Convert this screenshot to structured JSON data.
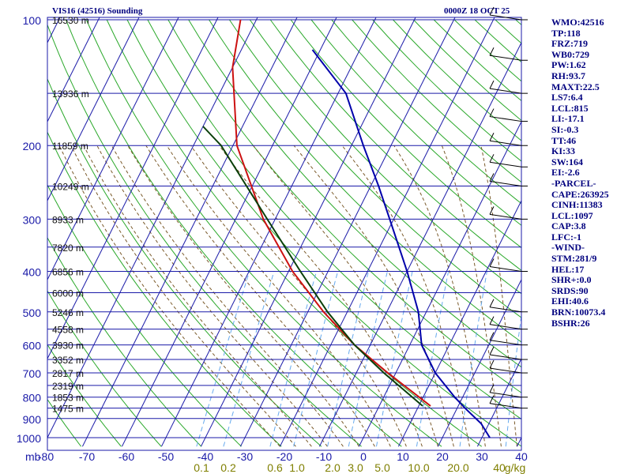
{
  "header": {
    "title": "VIS16 (42516) Sounding",
    "valid_time": "0000Z 18 OCT 25"
  },
  "indices": [
    "WMO:42516",
    "TP:118",
    "FRZ:719",
    "WB0:729",
    "PW:1.62",
    "RH:93.7",
    "MAXT:22.5",
    "LS7:6.4",
    "LCL:815",
    "LI:-17.1",
    "SI:-0.3",
    "TT:46",
    "KI:33",
    "SW:164",
    "EI:-2.6",
    "-PARCEL-",
    "CAPE:263925",
    "CINH:11383",
    "LCL:1097",
    "CAP:3.8",
    "LFC:-1",
    "-WIND-",
    "STM:281/9",
    "HEL:17",
    "SHR+:0.0",
    "SRDS:90",
    "EHI:40.6",
    "BRN:10073.4",
    "BSHR:26"
  ],
  "colors": {
    "grid": "#1a1aa8",
    "dry_adiabat": "#2aa82a",
    "moist_adiabat": "#7a5a2a",
    "mixing_ratio": "#66aaee",
    "temperature": "#0000aa",
    "dewpoint": "#cc1111",
    "parcel": "#0a400a",
    "pressure_label": "#1a1aa8",
    "mixing_label": "#7f7f00"
  },
  "chart_data": {
    "type": "line",
    "title": "VIS16 (42516) Sounding",
    "subtitle": "0000Z 18 OCT 25",
    "x_axis_unit": "mb",
    "x_ticks": [
      -80,
      -70,
      -60,
      -50,
      -40,
      -30,
      -20,
      -10,
      0,
      10,
      20,
      30,
      40
    ],
    "x_tick_labels": [
      "-80",
      "-70",
      "-60",
      "-50",
      "-40",
      "-30",
      "-20",
      "-10",
      "0",
      "10",
      "20",
      "30",
      "40"
    ],
    "pressure_levels": [
      100,
      200,
      300,
      400,
      500,
      600,
      700,
      800,
      900,
      1000
    ],
    "pressure_labels": [
      "100",
      "200",
      "300",
      "400",
      "500",
      "600",
      "700",
      "800",
      "900",
      "1000"
    ],
    "heights": [
      {
        "p": 100,
        "label": "16530 m"
      },
      {
        "p": 150,
        "label": "13936 m"
      },
      {
        "p": 200,
        "label": "11859 m"
      },
      {
        "p": 250,
        "label": "10249 m"
      },
      {
        "p": 300,
        "label": "8933 m"
      },
      {
        "p": 350,
        "label": "7820 m"
      },
      {
        "p": 400,
        "label": "6856 m"
      },
      {
        "p": 450,
        "label": "6000 m"
      },
      {
        "p": 500,
        "label": "5246 m"
      },
      {
        "p": 550,
        "label": "4558 m"
      },
      {
        "p": 600,
        "label": "3930 m"
      },
      {
        "p": 650,
        "label": "3352 m"
      },
      {
        "p": 700,
        "label": "2817 m"
      },
      {
        "p": 750,
        "label": "2319 m"
      },
      {
        "p": 800,
        "label": "1853 m"
      },
      {
        "p": 850,
        "label": "1475 m"
      }
    ],
    "mixing_ratio_labels": [
      "0.1",
      "0.2",
      "0.6",
      "1.0",
      "2.0",
      "3.0",
      "5.0",
      "10.0",
      "20.0",
      "40",
      "g/kg"
    ],
    "mixing_ratio_values": [
      0.1,
      0.2,
      0.6,
      1.0,
      2.0,
      3.0,
      5.0,
      10.0,
      20.0,
      40
    ],
    "series": [
      {
        "key": "temperature",
        "points": [
          {
            "p": 1000,
            "t": 32
          },
          {
            "p": 925,
            "t": 28
          },
          {
            "p": 850,
            "t": 22
          },
          {
            "p": 800,
            "t": 18
          },
          {
            "p": 700,
            "t": 10
          },
          {
            "p": 600,
            "t": 3
          },
          {
            "p": 500,
            "t": -2
          },
          {
            "p": 400,
            "t": -10
          },
          {
            "p": 300,
            "t": -21
          },
          {
            "p": 250,
            "t": -28
          },
          {
            "p": 200,
            "t": -37
          },
          {
            "p": 150,
            "t": -48
          },
          {
            "p": 118,
            "t": -62
          }
        ]
      },
      {
        "key": "dewpoint",
        "points": [
          {
            "p": 840,
            "t": 13
          },
          {
            "p": 800,
            "t": 9
          },
          {
            "p": 700,
            "t": -2
          },
          {
            "p": 600,
            "t": -14
          },
          {
            "p": 500,
            "t": -26
          },
          {
            "p": 400,
            "t": -39
          },
          {
            "p": 300,
            "t": -53
          },
          {
            "p": 200,
            "t": -69
          },
          {
            "p": 130,
            "t": -80
          },
          {
            "p": 100,
            "t": -84
          }
        ]
      },
      {
        "key": "parcel",
        "points": [
          {
            "p": 840,
            "t": 11
          },
          {
            "p": 700,
            "t": -3
          },
          {
            "p": 600,
            "t": -14
          },
          {
            "p": 500,
            "t": -25
          },
          {
            "p": 400,
            "t": -37
          },
          {
            "p": 300,
            "t": -52
          },
          {
            "p": 200,
            "t": -73
          },
          {
            "p": 180,
            "t": -80
          }
        ]
      }
    ],
    "wind_barbs": [
      {
        "p": 100
      },
      {
        "p": 125
      },
      {
        "p": 150
      },
      {
        "p": 175
      },
      {
        "p": 200
      },
      {
        "p": 225
      },
      {
        "p": 250
      },
      {
        "p": 300
      },
      {
        "p": 400
      },
      {
        "p": 500
      },
      {
        "p": 550
      },
      {
        "p": 600
      },
      {
        "p": 650
      },
      {
        "p": 700
      },
      {
        "p": 800
      },
      {
        "p": 850
      }
    ]
  }
}
